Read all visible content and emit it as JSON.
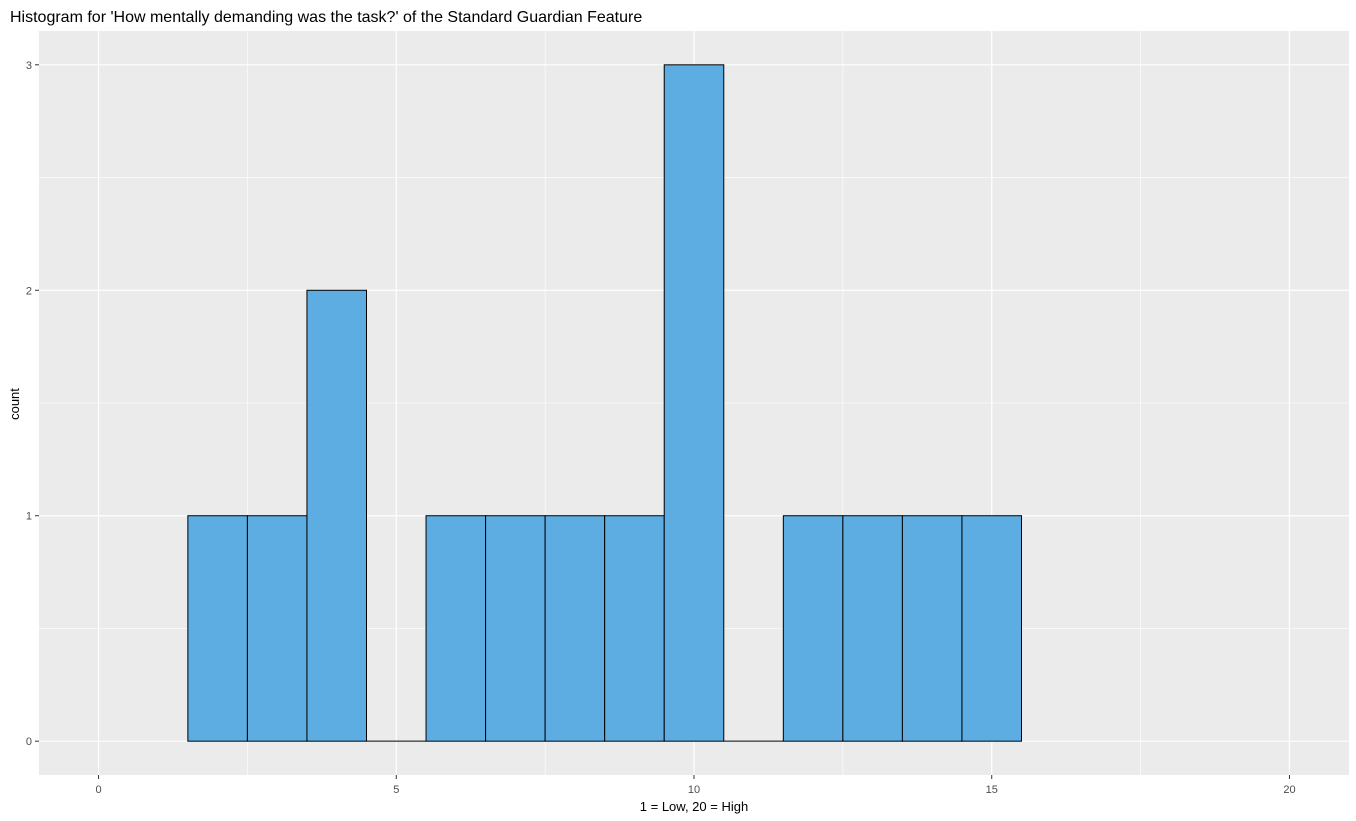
{
  "chart_data": {
    "type": "bar",
    "title": "Histogram for 'How mentally demanding was the task?' of the Standard Guardian Feature",
    "xlabel": "1 = Low, 20 = High",
    "ylabel": "count",
    "x": [
      2,
      3,
      4,
      5,
      6,
      7,
      8,
      9,
      10,
      11,
      12,
      13,
      14,
      15
    ],
    "values": [
      1,
      1,
      2,
      0,
      1,
      1,
      1,
      1,
      3,
      0,
      1,
      1,
      1,
      1
    ],
    "bin_width": 1,
    "xlim": [
      -1,
      21
    ],
    "ylim": [
      -0.15,
      3.15
    ],
    "x_ticks": [
      0,
      5,
      10,
      15,
      20
    ],
    "y_ticks": [
      0,
      1,
      2,
      3
    ],
    "grid": true,
    "colors": {
      "panel_background": "#ebebeb",
      "grid_major": "#ffffff",
      "bar_fill": "#5dade2",
      "bar_outline": "#000000"
    }
  }
}
